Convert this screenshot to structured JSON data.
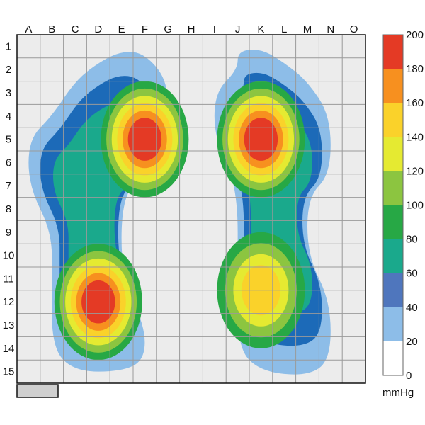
{
  "chart_data": {
    "type": "heatmap",
    "title": "",
    "subtitle": "",
    "columns": [
      "A",
      "B",
      "C",
      "D",
      "E",
      "F",
      "G",
      "H",
      "I",
      "J",
      "K",
      "L",
      "M",
      "N",
      "O"
    ],
    "rows": [
      "1",
      "2",
      "3",
      "4",
      "5",
      "6",
      "7",
      "8",
      "9",
      "10",
      "11",
      "12",
      "13",
      "14",
      "15"
    ],
    "grid": true,
    "colorbar": {
      "unit": "mmHg",
      "placement": "right",
      "ticks": [
        "0",
        "20",
        "40",
        "60",
        "80",
        "100",
        "120",
        "140",
        "160",
        "180",
        "200"
      ],
      "levels": [
        {
          "from": 0,
          "to": 20,
          "color": "#ffffff"
        },
        {
          "from": 20,
          "to": 40,
          "color": "#8dbde8"
        },
        {
          "from": 40,
          "to": 60,
          "color": "#4f76bd"
        },
        {
          "from": 60,
          "to": 80,
          "color": "#1aa98c"
        },
        {
          "from": 80,
          "to": 100,
          "color": "#27a845"
        },
        {
          "from": 100,
          "to": 120,
          "color": "#8cc540"
        },
        {
          "from": 120,
          "to": 140,
          "color": "#e5ea31"
        },
        {
          "from": 140,
          "to": 160,
          "color": "#fad22a"
        },
        {
          "from": 160,
          "to": 180,
          "color": "#f7901f"
        },
        {
          "from": 180,
          "to": 200,
          "color": "#e43a25"
        }
      ]
    },
    "regions": [
      {
        "name": "left foot",
        "outline_color": "#8dbde8",
        "fill_color": "#1c6ab8",
        "outline_cells": [
          [
            "E",
            1.2
          ],
          [
            "F",
            1.3
          ],
          [
            "G",
            2.5
          ],
          [
            "G",
            4.5
          ],
          [
            "F",
            6.5
          ],
          [
            "E",
            7.5
          ],
          [
            "E",
            11
          ],
          [
            "F",
            13
          ],
          [
            "F",
            14.5
          ],
          [
            "E",
            15
          ],
          [
            "C",
            15
          ],
          [
            "B",
            14
          ],
          [
            "B",
            11
          ],
          [
            "B",
            9
          ],
          [
            "A",
            7
          ],
          [
            "A",
            5
          ],
          [
            "B",
            4
          ],
          [
            "C",
            2.5
          ],
          [
            "D",
            1.7
          ]
        ]
      },
      {
        "name": "right foot",
        "outline_color": "#8dbde8",
        "fill_color": "#1c6ab8",
        "outline_cells": [
          [
            "J",
            1.2
          ],
          [
            "K",
            1.1
          ],
          [
            "L",
            1.7
          ],
          [
            "M",
            2.5
          ],
          [
            "N",
            4
          ],
          [
            "N",
            6.5
          ],
          [
            "M",
            7.5
          ],
          [
            "M",
            10
          ],
          [
            "N",
            12
          ],
          [
            "N",
            14.5
          ],
          [
            "M",
            15.2
          ],
          [
            "K",
            15
          ],
          [
            "J",
            14
          ],
          [
            "J",
            11
          ],
          [
            "J",
            7
          ],
          [
            "I",
            5
          ],
          [
            "I",
            3
          ],
          [
            "J",
            2
          ]
        ]
      }
    ],
    "peaks": [
      {
        "name": "left forefoot",
        "col": "F",
        "row": 5,
        "value": 195
      },
      {
        "name": "left heel",
        "col": "D",
        "row": 12,
        "value": 190
      },
      {
        "name": "right forefoot",
        "col": "K",
        "row": 5,
        "value": 195
      },
      {
        "name": "right heel",
        "col": "K",
        "row": 11.5,
        "value": 155
      }
    ]
  }
}
